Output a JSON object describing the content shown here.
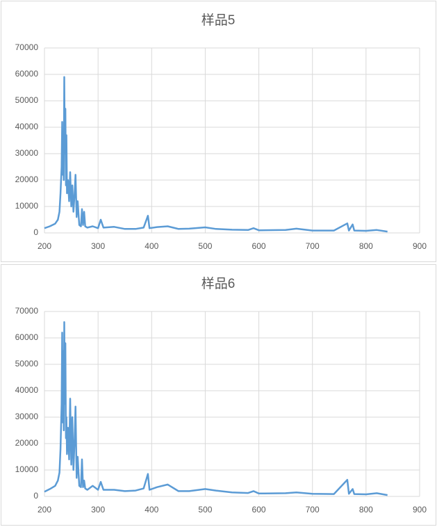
{
  "chart_data": [
    {
      "type": "line",
      "title": "样品5",
      "color": "#5b9bd5",
      "grid": true,
      "xlim": [
        200,
        900
      ],
      "xticks": [
        200,
        300,
        400,
        500,
        600,
        700,
        800,
        900
      ],
      "ylim": [
        0,
        70000
      ],
      "yticks": [
        0,
        10000,
        20000,
        30000,
        40000,
        50000,
        60000,
        70000
      ],
      "x": [
        200,
        210,
        220,
        225,
        228,
        230,
        232,
        233,
        234,
        235,
        236,
        237,
        238,
        239,
        240,
        241,
        242,
        244,
        246,
        248,
        250,
        252,
        254,
        256,
        258,
        260,
        262,
        265,
        268,
        270,
        272,
        274,
        276,
        280,
        290,
        300,
        305,
        310,
        330,
        350,
        370,
        385,
        393,
        396,
        410,
        430,
        450,
        470,
        500,
        520,
        550,
        580,
        590,
        600,
        650,
        670,
        700,
        740,
        765,
        768,
        775,
        778,
        800,
        820,
        840
      ],
      "values": [
        1800,
        2500,
        3500,
        5000,
        8000,
        15000,
        25000,
        42000,
        22000,
        35000,
        20000,
        59000,
        30000,
        47000,
        18000,
        37000,
        15000,
        20000,
        12000,
        23000,
        10000,
        18000,
        8000,
        14000,
        22000,
        6000,
        12000,
        3000,
        2500,
        9000,
        3000,
        8000,
        2500,
        2000,
        2500,
        1800,
        5000,
        2000,
        2300,
        1500,
        1500,
        2000,
        6500,
        1800,
        2200,
        2500,
        1500,
        1600,
        2100,
        1500,
        1200,
        1100,
        1800,
        1000,
        1100,
        1600,
        900,
        900,
        3600,
        900,
        3200,
        900,
        800,
        1100,
        500
      ]
    },
    {
      "type": "line",
      "title": "样品6",
      "color": "#5b9bd5",
      "grid": true,
      "xlim": [
        200,
        900
      ],
      "xticks": [
        200,
        300,
        400,
        500,
        600,
        700,
        800,
        900
      ],
      "ylim": [
        0,
        70000
      ],
      "yticks": [
        0,
        10000,
        20000,
        30000,
        40000,
        50000,
        60000,
        70000
      ],
      "x": [
        200,
        210,
        220,
        225,
        228,
        230,
        232,
        233,
        234,
        235,
        236,
        237,
        238,
        239,
        240,
        241,
        242,
        244,
        246,
        248,
        250,
        252,
        254,
        256,
        258,
        260,
        262,
        265,
        268,
        270,
        272,
        274,
        276,
        280,
        290,
        300,
        305,
        310,
        330,
        350,
        370,
        385,
        393,
        396,
        410,
        430,
        450,
        470,
        500,
        520,
        550,
        580,
        590,
        600,
        650,
        670,
        700,
        740,
        765,
        768,
        775,
        778,
        800,
        820,
        840
      ],
      "values": [
        1800,
        2800,
        4000,
        6000,
        9000,
        18000,
        35000,
        62000,
        28000,
        55000,
        25000,
        66000,
        35000,
        58000,
        22000,
        30000,
        16000,
        26000,
        14000,
        37000,
        12000,
        30000,
        10000,
        20000,
        34000,
        7000,
        15000,
        4000,
        3500,
        14000,
        3500,
        6000,
        3000,
        2500,
        4000,
        2500,
        5500,
        2500,
        2500,
        2000,
        2200,
        3000,
        8500,
        2500,
        3500,
        4500,
        2000,
        2000,
        2800,
        2200,
        1500,
        1300,
        2000,
        1100,
        1200,
        1500,
        1000,
        900,
        6300,
        1000,
        2800,
        900,
        800,
        1200,
        500
      ]
    }
  ]
}
